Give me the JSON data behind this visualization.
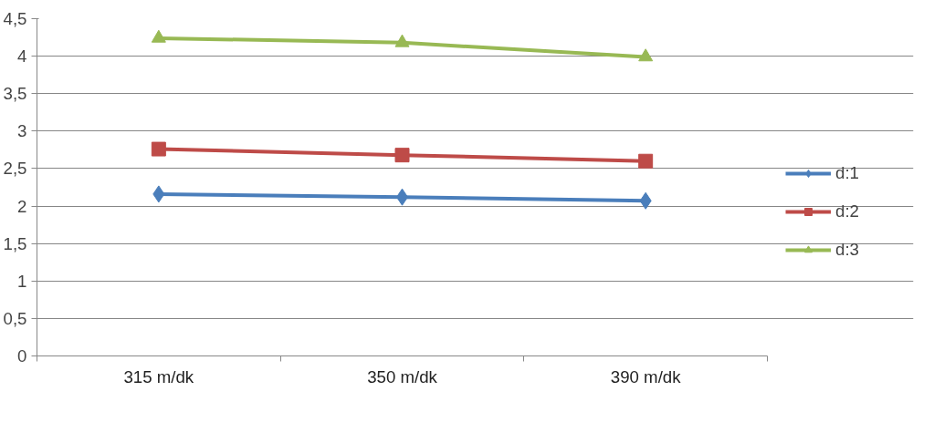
{
  "chart_data": {
    "type": "line",
    "categories": [
      "315 m/dk",
      "350 m/dk",
      "390 m/dk"
    ],
    "series": [
      {
        "name": "d:1",
        "color": "#4a7ebb",
        "marker": "diamond",
        "values": [
          2.16,
          2.12,
          2.07
        ]
      },
      {
        "name": "d:2",
        "color": "#be4b48",
        "marker": "square",
        "values": [
          2.76,
          2.68,
          2.6
        ]
      },
      {
        "name": "d:3",
        "color": "#98b954",
        "marker": "triangle",
        "values": [
          4.24,
          4.18,
          3.99
        ]
      }
    ],
    "ylim": [
      0,
      4.5
    ],
    "yticks": [
      0,
      {
        "value": 0.5,
        "label": "0,5"
      },
      1,
      {
        "value": 1.5,
        "label": "1,5"
      },
      2,
      {
        "value": 2.5,
        "label": "2,5"
      },
      3,
      {
        "value": 3.5,
        "label": "3,5"
      },
      4,
      {
        "value": 4.5,
        "label": "4,5"
      }
    ],
    "grid": "y",
    "legend": "right",
    "line_style": "solid"
  }
}
